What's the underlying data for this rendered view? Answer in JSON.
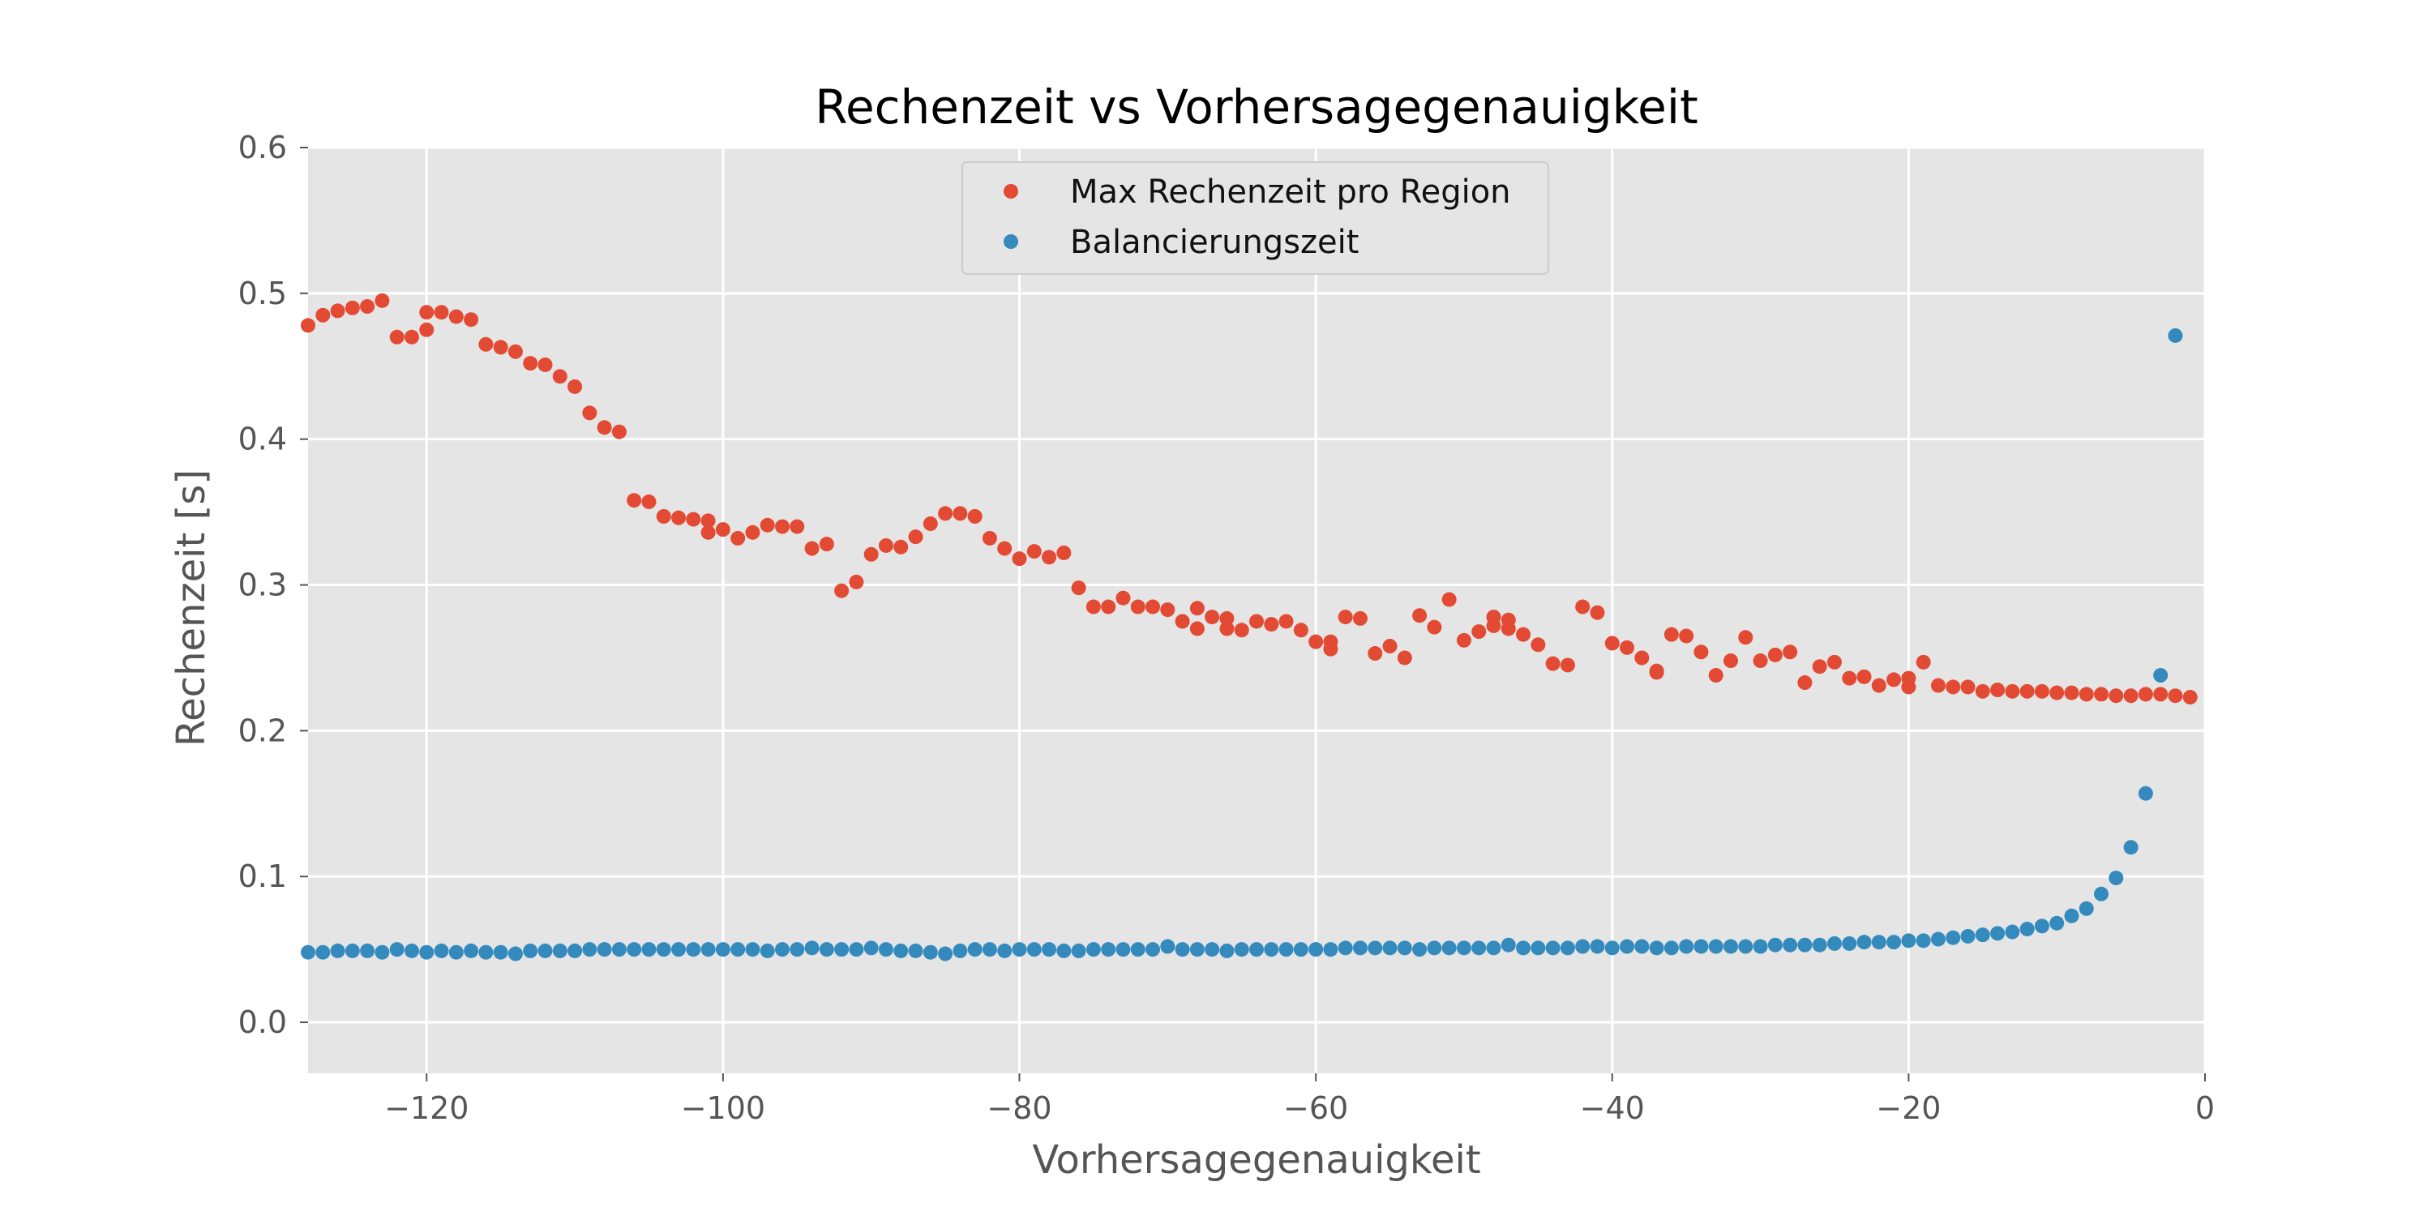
{
  "chart_data": {
    "type": "scatter",
    "title": "Rechenzeit vs Vorhersagegenauigkeit",
    "xlabel": "Vorhersagegenauigkeit",
    "ylabel": "Rechenzeit [s]",
    "xlim": [
      -128,
      0
    ],
    "ylim": [
      -0.035,
      0.6
    ],
    "xticks": [
      -120,
      -100,
      -80,
      -60,
      -40,
      -20,
      0
    ],
    "xtick_labels": [
      "−120",
      "−100",
      "−80",
      "−60",
      "−40",
      "−20",
      "0"
    ],
    "yticks": [
      0.0,
      0.1,
      0.2,
      0.3,
      0.4,
      0.5,
      0.6
    ],
    "ytick_labels": [
      "0.0",
      "0.1",
      "0.2",
      "0.3",
      "0.4",
      "0.5",
      "0.6"
    ],
    "grid": true,
    "legend_position": "upper-center",
    "background": "#e5e5e5",
    "series": [
      {
        "name": "Max Rechenzeit pro Region",
        "color": "#e24a33",
        "x": [
          -128,
          -127,
          -126,
          -125,
          -124,
          -123,
          -122,
          -121,
          -120,
          -120,
          -119,
          -118,
          -117,
          -116,
          -115,
          -114,
          -113,
          -112,
          -111,
          -110,
          -109,
          -108,
          -107,
          -106,
          -105,
          -104,
          -103,
          -102,
          -101,
          -101,
          -100,
          -99,
          -98,
          -97,
          -96,
          -95,
          -94,
          -93,
          -92,
          -91,
          -90,
          -89,
          -88,
          -87,
          -86,
          -85,
          -84,
          -83,
          -82,
          -81,
          -80,
          -79,
          -78,
          -77,
          -76,
          -75,
          -74,
          -73,
          -72,
          -71,
          -70,
          -69,
          -68,
          -68,
          -67,
          -66,
          -66,
          -65,
          -64,
          -63,
          -62,
          -61,
          -60,
          -59,
          -59,
          -58,
          -57,
          -56,
          -55,
          -54,
          -53,
          -52,
          -51,
          -50,
          -49,
          -48,
          -48,
          -47,
          -47,
          -46,
          -45,
          -44,
          -43,
          -42,
          -41,
          -40,
          -39,
          -38,
          -37,
          -37,
          -36,
          -35,
          -34,
          -33,
          -32,
          -31,
          -30,
          -29,
          -28,
          -27,
          -26,
          -25,
          -24,
          -23,
          -22,
          -21,
          -20,
          -20,
          -19,
          -18,
          -17,
          -16,
          -15,
          -14,
          -13,
          -12,
          -11,
          -10,
          -9,
          -8,
          -7,
          -6,
          -5,
          -4,
          -3,
          -2,
          -1
        ],
        "y": [
          0.478,
          0.485,
          0.488,
          0.49,
          0.491,
          0.495,
          0.47,
          0.47,
          0.475,
          0.487,
          0.487,
          0.484,
          0.482,
          0.465,
          0.463,
          0.46,
          0.452,
          0.451,
          0.443,
          0.436,
          0.418,
          0.408,
          0.405,
          0.358,
          0.357,
          0.347,
          0.346,
          0.345,
          0.344,
          0.336,
          0.338,
          0.332,
          0.336,
          0.341,
          0.34,
          0.34,
          0.325,
          0.328,
          0.296,
          0.302,
          0.321,
          0.327,
          0.326,
          0.333,
          0.342,
          0.349,
          0.349,
          0.347,
          0.332,
          0.325,
          0.318,
          0.323,
          0.319,
          0.322,
          0.298,
          0.285,
          0.285,
          0.291,
          0.285,
          0.285,
          0.283,
          0.275,
          0.27,
          0.284,
          0.278,
          0.277,
          0.27,
          0.269,
          0.275,
          0.273,
          0.275,
          0.269,
          0.261,
          0.256,
          0.261,
          0.278,
          0.277,
          0.253,
          0.258,
          0.25,
          0.279,
          0.271,
          0.29,
          0.262,
          0.268,
          0.278,
          0.272,
          0.276,
          0.27,
          0.266,
          0.259,
          0.246,
          0.245,
          0.285,
          0.281,
          0.26,
          0.257,
          0.25,
          0.241,
          0.24,
          0.266,
          0.265,
          0.254,
          0.238,
          0.248,
          0.264,
          0.248,
          0.252,
          0.254,
          0.233,
          0.244,
          0.247,
          0.236,
          0.237,
          0.231,
          0.235,
          0.236,
          0.23,
          0.247,
          0.231,
          0.23,
          0.23,
          0.227,
          0.228,
          0.227,
          0.227,
          0.227,
          0.226,
          0.226,
          0.225,
          0.225,
          0.224,
          0.224,
          0.225,
          0.225,
          0.224,
          0.223
        ]
      },
      {
        "name": "Balancierungszeit",
        "color": "#348abd",
        "x": [
          -128,
          -127,
          -126,
          -125,
          -124,
          -123,
          -122,
          -121,
          -120,
          -119,
          -118,
          -117,
          -116,
          -115,
          -114,
          -113,
          -112,
          -111,
          -110,
          -109,
          -108,
          -107,
          -106,
          -105,
          -104,
          -103,
          -102,
          -101,
          -100,
          -99,
          -98,
          -97,
          -96,
          -95,
          -94,
          -93,
          -92,
          -91,
          -90,
          -89,
          -88,
          -87,
          -86,
          -85,
          -84,
          -83,
          -82,
          -81,
          -80,
          -79,
          -78,
          -77,
          -76,
          -75,
          -74,
          -73,
          -72,
          -71,
          -70,
          -69,
          -68,
          -67,
          -66,
          -65,
          -64,
          -63,
          -62,
          -61,
          -60,
          -59,
          -58,
          -57,
          -56,
          -55,
          -54,
          -53,
          -52,
          -51,
          -50,
          -49,
          -48,
          -47,
          -46,
          -45,
          -44,
          -43,
          -42,
          -41,
          -40,
          -39,
          -38,
          -37,
          -36,
          -35,
          -34,
          -33,
          -32,
          -31,
          -30,
          -29,
          -28,
          -27,
          -26,
          -25,
          -24,
          -23,
          -22,
          -21,
          -20,
          -19,
          -18,
          -17,
          -16,
          -15,
          -14,
          -13,
          -12,
          -11,
          -10,
          -9,
          -8,
          -7,
          -6,
          -5,
          -4,
          -3,
          -2
        ],
        "y": [
          0.048,
          0.048,
          0.049,
          0.049,
          0.049,
          0.048,
          0.05,
          0.049,
          0.048,
          0.049,
          0.048,
          0.049,
          0.048,
          0.048,
          0.047,
          0.049,
          0.049,
          0.049,
          0.049,
          0.05,
          0.05,
          0.05,
          0.05,
          0.05,
          0.05,
          0.05,
          0.05,
          0.05,
          0.05,
          0.05,
          0.05,
          0.049,
          0.05,
          0.05,
          0.051,
          0.05,
          0.05,
          0.05,
          0.051,
          0.05,
          0.049,
          0.049,
          0.048,
          0.047,
          0.049,
          0.05,
          0.05,
          0.049,
          0.05,
          0.05,
          0.05,
          0.049,
          0.049,
          0.05,
          0.05,
          0.05,
          0.05,
          0.05,
          0.052,
          0.05,
          0.05,
          0.05,
          0.049,
          0.05,
          0.05,
          0.05,
          0.05,
          0.05,
          0.05,
          0.05,
          0.051,
          0.051,
          0.051,
          0.051,
          0.051,
          0.05,
          0.051,
          0.051,
          0.051,
          0.051,
          0.051,
          0.053,
          0.051,
          0.051,
          0.051,
          0.051,
          0.052,
          0.052,
          0.051,
          0.052,
          0.052,
          0.051,
          0.051,
          0.052,
          0.052,
          0.052,
          0.052,
          0.052,
          0.052,
          0.053,
          0.053,
          0.053,
          0.053,
          0.054,
          0.054,
          0.055,
          0.055,
          0.055,
          0.056,
          0.056,
          0.057,
          0.058,
          0.059,
          0.06,
          0.061,
          0.062,
          0.064,
          0.066,
          0.068,
          0.073,
          0.078,
          0.088,
          0.099,
          0.12,
          0.157,
          0.238,
          0.471
        ]
      }
    ]
  }
}
